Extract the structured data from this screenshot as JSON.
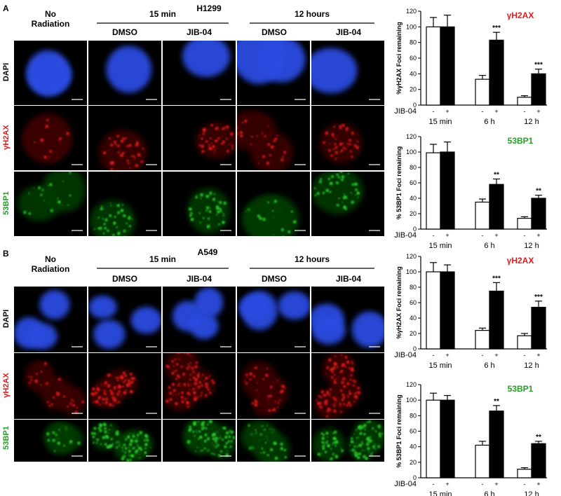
{
  "colors": {
    "dapi": "#2b4be0",
    "h2ax": "#e01c1c",
    "bp1": "#2fcc2f",
    "h2ax_label": "#e41a1a",
    "bp1_label": "#22a022"
  },
  "panels": [
    {
      "letter": "A",
      "cell_line": "H1299",
      "col_labels": [
        "No\nRadiation",
        "DMSO",
        "JIB-04",
        "DMSO",
        "JIB-04"
      ],
      "no_radiation": "No",
      "no_radiation_2": "Radiation",
      "group_15": "15 min",
      "group_12": "12 hours",
      "dmso": "DMSO",
      "jib": "JIB-04",
      "row_labels": [
        "DAPI",
        "γH2AX",
        "53BP1"
      ]
    },
    {
      "letter": "B",
      "cell_line": "A549",
      "no_radiation": "No",
      "no_radiation_2": "Radiation",
      "group_15": "15 min",
      "group_12": "12 hours",
      "dmso": "DMSO",
      "jib": "JIB-04",
      "row_labels": [
        "DAPI",
        "γH2AX",
        "53BP1"
      ]
    }
  ],
  "chart_data": [
    {
      "type": "bar",
      "title": "γH2AX",
      "ylabel": "%γH2AX Foci remaining",
      "ylim": [
        0,
        120
      ],
      "yticks": [
        0,
        20,
        40,
        60,
        80,
        100,
        120
      ],
      "categories": [
        "15 min",
        "6 h",
        "12 h"
      ],
      "treatment_label": "JIB-04",
      "treatment_signs": [
        "-",
        "+"
      ],
      "series": [
        {
          "name": "-",
          "values": [
            100,
            33,
            10
          ],
          "errors": [
            12,
            5,
            2
          ]
        },
        {
          "name": "+",
          "values": [
            100,
            83,
            40
          ],
          "errors": [
            15,
            10,
            6
          ]
        }
      ],
      "significance": [
        "",
        "***",
        "***"
      ]
    },
    {
      "type": "bar",
      "title": "53BP1",
      "ylabel": "% 53BP1 Foci remaining",
      "ylim": [
        0,
        120
      ],
      "yticks": [
        0,
        20,
        40,
        60,
        80,
        100,
        120
      ],
      "categories": [
        "15 min",
        "6 h",
        "12 h"
      ],
      "treatment_label": "JIB-04",
      "treatment_signs": [
        "-",
        "+"
      ],
      "series": [
        {
          "name": "-",
          "values": [
            99,
            35,
            14
          ],
          "errors": [
            11,
            4,
            2
          ]
        },
        {
          "name": "+",
          "values": [
            100,
            58,
            40
          ],
          "errors": [
            13,
            7,
            4
          ]
        }
      ],
      "significance": [
        "",
        "**",
        "**"
      ]
    },
    {
      "type": "bar",
      "title": "γH2AX",
      "ylabel": "%γH2AX Foci remaining",
      "ylim": [
        0,
        120
      ],
      "yticks": [
        0,
        20,
        40,
        60,
        80,
        100,
        120
      ],
      "categories": [
        "15 min",
        "6 h",
        "12 h"
      ],
      "treatment_label": "JIB-04",
      "treatment_signs": [
        "-",
        "+"
      ],
      "series": [
        {
          "name": "-",
          "values": [
            100,
            24,
            17
          ],
          "errors": [
            12,
            3,
            3
          ]
        },
        {
          "name": "+",
          "values": [
            100,
            75,
            54
          ],
          "errors": [
            9,
            11,
            8
          ]
        }
      ],
      "significance": [
        "",
        "***",
        "***"
      ]
    },
    {
      "type": "bar",
      "title": "53BP1",
      "ylabel": "% 53BP1 Foci remaining",
      "ylim": [
        0,
        120
      ],
      "yticks": [
        0,
        20,
        40,
        60,
        80,
        100,
        120
      ],
      "categories": [
        "15 min",
        "6 h",
        "12 h"
      ],
      "treatment_label": "JIB-04",
      "treatment_signs": [
        "-",
        "+"
      ],
      "series": [
        {
          "name": "-",
          "values": [
            100,
            42,
            11
          ],
          "errors": [
            9,
            5,
            2
          ]
        },
        {
          "name": "+",
          "values": [
            100,
            86,
            44
          ],
          "errors": [
            6,
            7,
            3
          ]
        }
      ],
      "significance": [
        "",
        "**",
        "**"
      ]
    }
  ]
}
